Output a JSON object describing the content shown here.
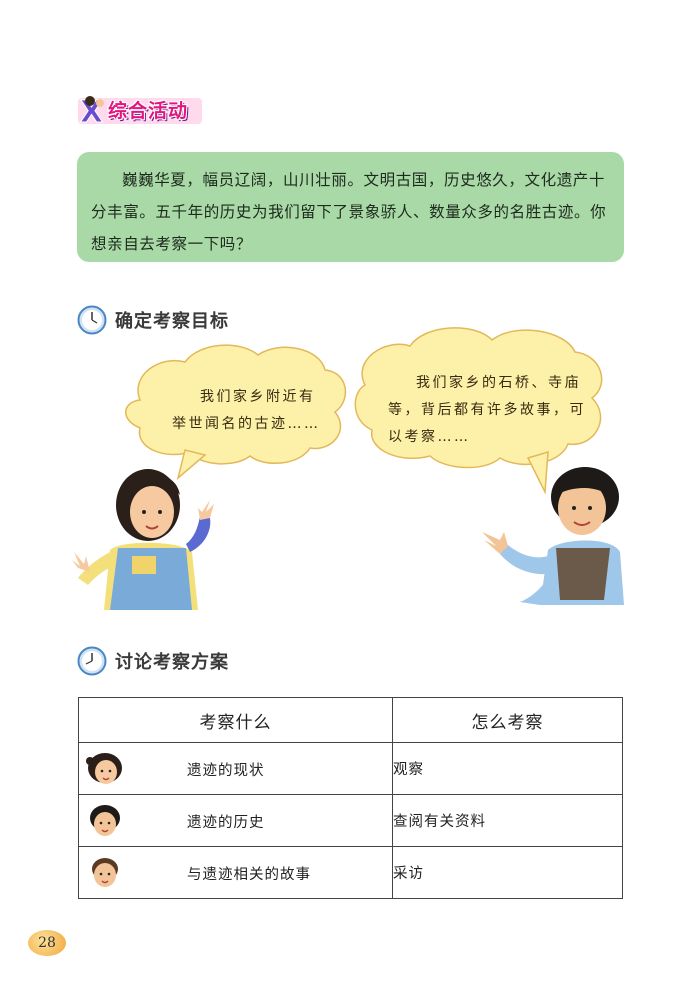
{
  "badge": {
    "label": "综合活动",
    "icon": "x-letter-kids-icon"
  },
  "intro": {
    "text": "巍巍华夏，幅员辽阔，山川壮丽。文明古国，历史悠久，文化遗产十分丰富。五千年的历史为我们留下了景象骄人、数量众多的名胜古迹。你想亲自去考察一下吗？"
  },
  "section1": {
    "title": "确定考察目标",
    "icon": "clock-icon"
  },
  "bubbles": [
    {
      "lines": [
        "我们家乡附近有",
        "举世闻名的古迹……"
      ]
    },
    {
      "lines": [
        "我们家乡的石桥、寺庙",
        "等，背后都有许多故事，可",
        "以考察……"
      ]
    }
  ],
  "section2": {
    "title": "讨论考察方案",
    "icon": "clock-icon"
  },
  "table": {
    "headers": [
      "考察什么",
      "怎么考察"
    ],
    "rows": [
      {
        "what": "遗迹的现状",
        "how": "观察",
        "face": "girl-face-icon"
      },
      {
        "what": "遗迹的历史",
        "how": "查阅有关资料",
        "face": "boy-face-icon"
      },
      {
        "what": "与遗迹相关的故事",
        "how": "采访",
        "face": "boy-face-icon"
      }
    ]
  },
  "page_number": "28",
  "colors": {
    "intro_bg": "#a8d9a6",
    "bubble_bg": "#fdf0a8",
    "badge_text": "#e3157e"
  }
}
